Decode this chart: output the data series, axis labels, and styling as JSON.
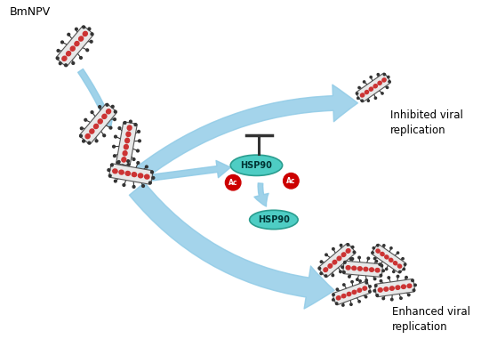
{
  "bg_color": "#ffffff",
  "arrow_color": "#8ecae6",
  "hsp90_color": "#4ecdc4",
  "hsp90_edge": "#2a9d8f",
  "ac_color": "#cc0000",
  "virus_body_color": "#e8e8e8",
  "virus_body_edge": "#555555",
  "virus_dot_color": "#cc3333",
  "spike_color": "#333333",
  "text_inhibited": "Inhibited viral\nreplication",
  "text_enhanced": "Enhanced viral\nreplication",
  "text_bmnpv": "BmNPV",
  "text_hsp90": "HSP90",
  "text_ac": "Ac",
  "inhibit_bar_color": "#333333"
}
